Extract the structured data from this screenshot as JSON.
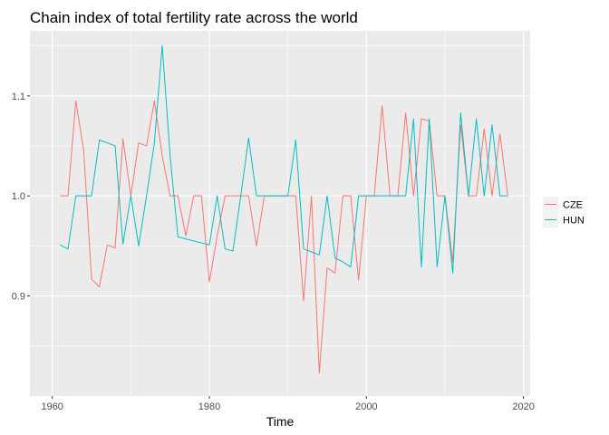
{
  "chart_data": {
    "type": "line",
    "title": "Chain index of total fertility rate across the world",
    "xlabel": "Time",
    "ylabel": "",
    "xlim": [
      1957.15,
      2020.85
    ],
    "ylim": [
      0.8,
      1.165
    ],
    "x_ticks": [
      1960,
      1980,
      2000,
      2020
    ],
    "x_tick_labels": [
      "1960",
      "1980",
      "2000",
      "2020"
    ],
    "y_ticks": [
      0.9,
      1.0,
      1.1
    ],
    "y_tick_labels": [
      "0.9",
      "1.0",
      "1.1"
    ],
    "grid": true,
    "legend_position": "right",
    "x": [
      1961,
      1962,
      1963,
      1964,
      1965,
      1966,
      1967,
      1968,
      1969,
      1970,
      1971,
      1972,
      1973,
      1974,
      1975,
      1976,
      1977,
      1978,
      1979,
      1980,
      1981,
      1982,
      1983,
      1984,
      1985,
      1986,
      1987,
      1988,
      1989,
      1990,
      1991,
      1992,
      1993,
      1994,
      1995,
      1996,
      1997,
      1998,
      1999,
      2000,
      2001,
      2002,
      2003,
      2004,
      2005,
      2006,
      2007,
      2008,
      2009,
      2010,
      2011,
      2012,
      2013,
      2014,
      2015,
      2016,
      2017,
      2018
    ],
    "series": [
      {
        "name": "CZE",
        "color": "#f8766d",
        "values": [
          1.0,
          1.0,
          1.095,
          1.045,
          0.917,
          0.909,
          0.951,
          0.948,
          1.057,
          1.0,
          1.053,
          1.05,
          1.095,
          1.04,
          1.0,
          1.0,
          0.96,
          1.0,
          1.0,
          0.914,
          0.96,
          1.0,
          1.0,
          1.0,
          1.0,
          0.95,
          1.0,
          1.0,
          1.0,
          1.0,
          1.0,
          0.895,
          1.0,
          0.823,
          0.928,
          0.923,
          1.0,
          1.0,
          0.916,
          1.0,
          1.0,
          1.09,
          1.0,
          1.0,
          1.083,
          1.0,
          1.077,
          1.075,
          1.0,
          1.0,
          0.934,
          1.071,
          1.0,
          1.0,
          1.067,
          1.0,
          1.062,
          1.0
        ]
      },
      {
        "name": "HUN",
        "color": "#00bfc4",
        "values": [
          0.951,
          0.947,
          1.0,
          1.0,
          1.0,
          1.056,
          1.053,
          1.05,
          0.952,
          1.0,
          0.95,
          1.0,
          1.053,
          1.15,
          1.04,
          0.959,
          0.957,
          0.955,
          0.953,
          0.951,
          1.0,
          0.947,
          0.945,
          1.0,
          1.058,
          1.0,
          1.0,
          1.0,
          1.0,
          1.0,
          1.056,
          0.947,
          0.944,
          0.941,
          1.0,
          0.938,
          0.934,
          0.929,
          1.0,
          1.0,
          1.0,
          1.0,
          1.0,
          1.0,
          1.0,
          1.077,
          0.929,
          1.077,
          0.929,
          1.0,
          0.923,
          1.083,
          1.0,
          1.077,
          1.0,
          1.071,
          1.0,
          1.0
        ]
      }
    ]
  }
}
